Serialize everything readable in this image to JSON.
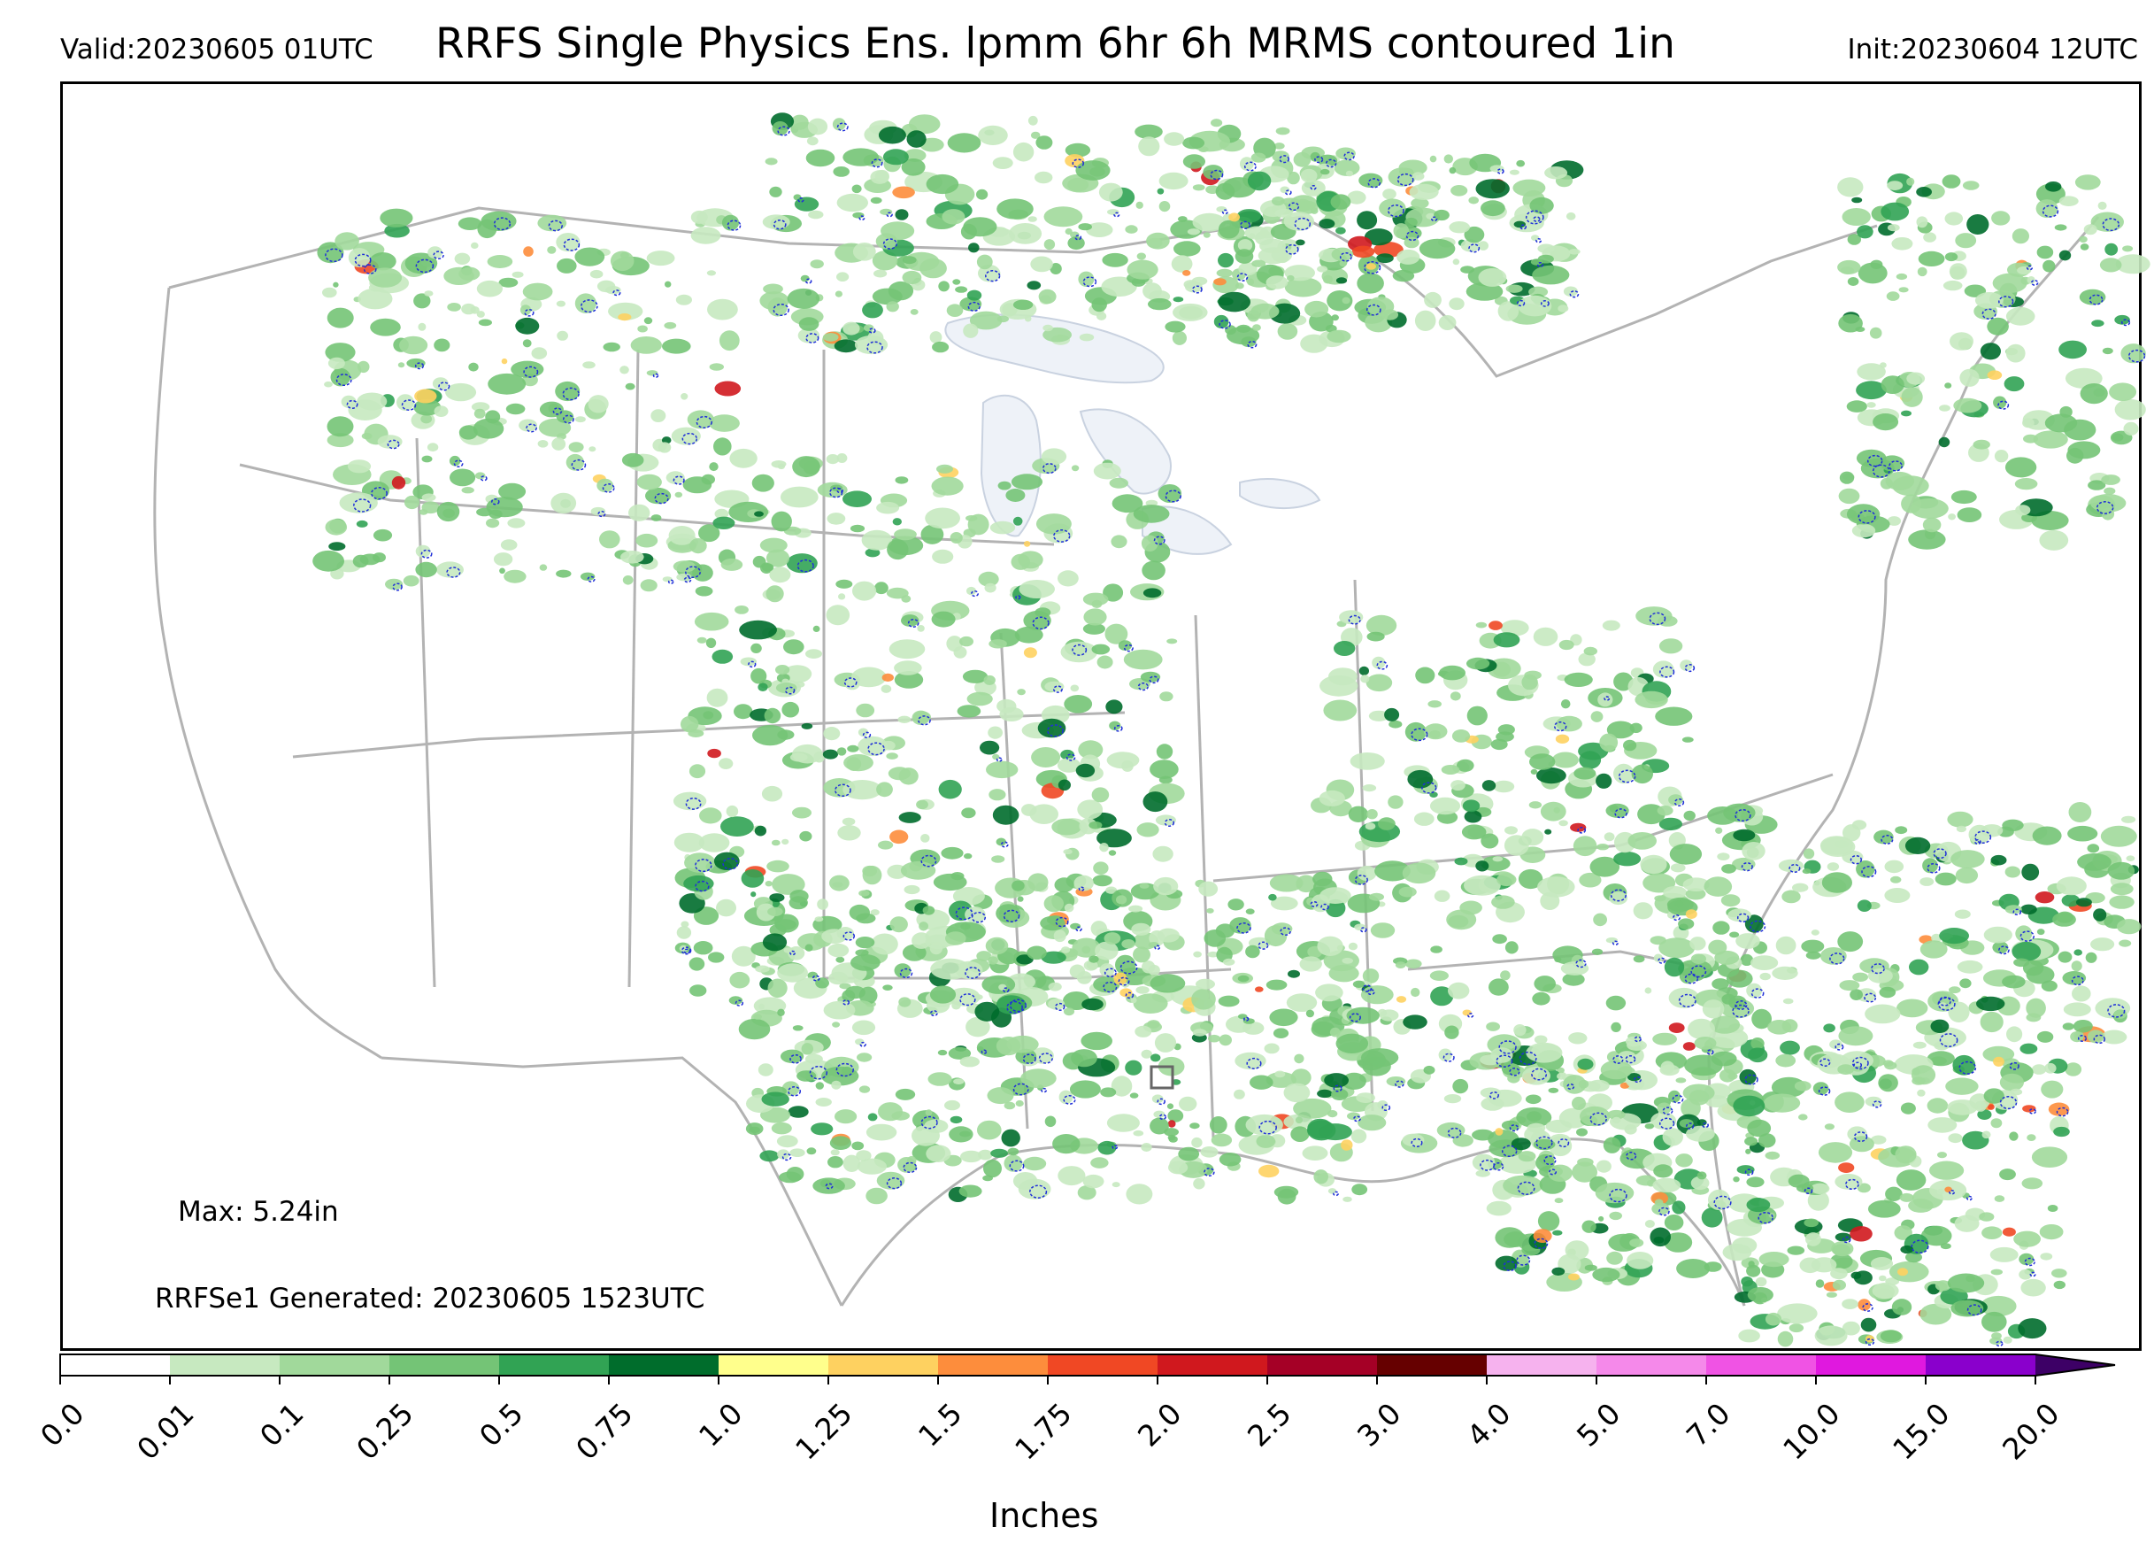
{
  "header": {
    "valid": "Valid:20230605 01UTC",
    "title": "RRFS Single Physics Ens. lpmm 6hr 6h MRMS contoured 1in",
    "init": "Init:20230604 12UTC"
  },
  "map": {
    "max_text": "Max: 5.24in",
    "generated_text": "RRFSe1 Generated: 20230605 1523UTC",
    "contour_color": "#1f2fd8",
    "border_color": "#b3b3b3",
    "lake_color": "#eef2f8"
  },
  "colorbar": {
    "label": "Inches",
    "ticks": [
      "0.0",
      "0.01",
      "0.1",
      "0.25",
      "0.5",
      "0.75",
      "1.0",
      "1.25",
      "1.5",
      "1.75",
      "2.0",
      "2.5",
      "3.0",
      "4.0",
      "5.0",
      "7.0",
      "10.0",
      "15.0",
      "20.0"
    ],
    "colors": [
      "#ffffff",
      "#c7e9c0",
      "#a1d99b",
      "#74c476",
      "#31a354",
      "#006d2c",
      "#ffff8c",
      "#fed160",
      "#fd8d3c",
      "#f04824",
      "#d0181e",
      "#a50026",
      "#660000",
      "#f6b2ee",
      "#f589ea",
      "#f053e4",
      "#e018df",
      "#8a00cc"
    ],
    "extend_color": "#3d0066"
  }
}
